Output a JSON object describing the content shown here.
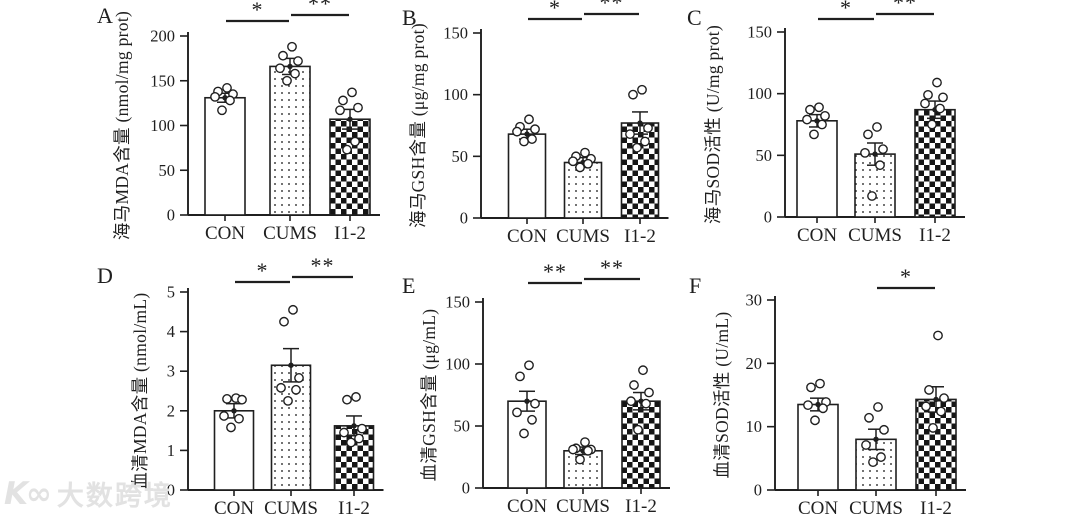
{
  "watermark": {
    "logo_text": "K∞",
    "brand_text": "大数跨境"
  },
  "colors": {
    "ink": "#1f1f1f",
    "background": "#ffffff",
    "watermark": "#e2e2e2"
  },
  "groups": [
    "CON",
    "CUMS",
    "I1-2"
  ],
  "chart_data": [
    {
      "panel": "A",
      "type": "bar",
      "ylabel": "海马MDA含量 (nmol/mg prot)",
      "categories": [
        "CON",
        "CUMS",
        "I1-2"
      ],
      "values": [
        131,
        166,
        107
      ],
      "errors": [
        5,
        9,
        11
      ],
      "points": [
        [
          142,
          138,
          135,
          132,
          128,
          117
        ],
        [
          188,
          178,
          172,
          164,
          158,
          150
        ],
        [
          137,
          128,
          120,
          117,
          82,
          73
        ]
      ],
      "ylim": [
        0,
        200
      ],
      "yticks": [
        0,
        50,
        100,
        150,
        200
      ],
      "bar_styles": [
        "plain",
        "dots",
        "checker"
      ],
      "grid": false,
      "legend": "none",
      "significance": [
        {
          "between": [
            "CON",
            "CUMS"
          ],
          "label": "*"
        },
        {
          "between": [
            "CUMS",
            "I1-2"
          ],
          "label": "**"
        }
      ]
    },
    {
      "panel": "B",
      "type": "bar",
      "ylabel": "海马GSH含量 (μg/mg prot)",
      "categories": [
        "CON",
        "CUMS",
        "I1-2"
      ],
      "values": [
        68,
        45,
        77
      ],
      "errors": [
        4,
        4,
        9
      ],
      "points": [
        [
          80,
          74,
          72,
          70,
          64,
          62
        ],
        [
          53,
          50,
          48,
          46,
          44,
          41
        ],
        [
          104,
          100,
          73,
          68,
          62,
          57
        ]
      ],
      "ylim": [
        0,
        150
      ],
      "yticks": [
        0,
        50,
        100,
        150
      ],
      "bar_styles": [
        "plain",
        "dots",
        "checker"
      ],
      "grid": false,
      "legend": "none",
      "significance": [
        {
          "between": [
            "CON",
            "CUMS"
          ],
          "label": "*"
        },
        {
          "between": [
            "CUMS",
            "I1-2"
          ],
          "label": "**"
        }
      ]
    },
    {
      "panel": "C",
      "type": "bar",
      "ylabel": "海马SOD活性 (U/mg prot)",
      "categories": [
        "CON",
        "CUMS",
        "I1-2"
      ],
      "values": [
        78,
        51,
        87
      ],
      "errors": [
        5,
        9,
        7
      ],
      "points": [
        [
          89,
          87,
          82,
          79,
          75,
          67
        ],
        [
          73,
          67,
          55,
          52,
          42,
          17
        ],
        [
          109,
          99,
          97,
          92,
          88,
          75
        ]
      ],
      "ylim": [
        0,
        150
      ],
      "yticks": [
        0,
        50,
        100,
        150
      ],
      "bar_styles": [
        "plain",
        "dots",
        "checker"
      ],
      "grid": false,
      "legend": "none",
      "significance": [
        {
          "between": [
            "CON",
            "CUMS"
          ],
          "label": "*"
        },
        {
          "between": [
            "CUMS",
            "I1-2"
          ],
          "label": "**"
        }
      ]
    },
    {
      "panel": "D",
      "type": "bar",
      "ylabel": "血清MDA含量 (nmol/mL)",
      "categories": [
        "CON",
        "CUMS",
        "I1-2"
      ],
      "values": [
        2.0,
        3.15,
        1.62
      ],
      "errors": [
        0.18,
        0.42,
        0.25
      ],
      "points": [
        [
          2.32,
          2.3,
          2.28,
          1.87,
          1.8,
          1.58
        ],
        [
          4.55,
          4.25,
          2.83,
          2.58,
          2.53,
          2.25
        ],
        [
          2.35,
          2.28,
          1.55,
          1.45,
          1.3,
          1.2
        ]
      ],
      "ylim": [
        0,
        5
      ],
      "yticks": [
        0,
        1,
        2,
        3,
        4,
        5
      ],
      "bar_styles": [
        "plain",
        "dots",
        "checker"
      ],
      "grid": false,
      "legend": "none",
      "significance": [
        {
          "between": [
            "CON",
            "CUMS"
          ],
          "label": "*"
        },
        {
          "between": [
            "CUMS",
            "I1-2"
          ],
          "label": "**"
        }
      ]
    },
    {
      "panel": "E",
      "type": "bar",
      "ylabel": "血清GSH含量 (μg/mL)",
      "categories": [
        "CON",
        "CUMS",
        "I1-2"
      ],
      "values": [
        70,
        30,
        70
      ],
      "errors": [
        8,
        3,
        7
      ],
      "points": [
        [
          99,
          90,
          68,
          61,
          55,
          44
        ],
        [
          37,
          32,
          31,
          31,
          30,
          23
        ],
        [
          95,
          83,
          77,
          70,
          68,
          47
        ]
      ],
      "ylim": [
        0,
        150
      ],
      "yticks": [
        0,
        50,
        100,
        150
      ],
      "bar_styles": [
        "plain",
        "dots",
        "checker"
      ],
      "grid": false,
      "legend": "none",
      "significance": [
        {
          "between": [
            "CON",
            "CUMS"
          ],
          "label": "**"
        },
        {
          "between": [
            "CUMS",
            "I1-2"
          ],
          "label": "**"
        }
      ]
    },
    {
      "panel": "F",
      "type": "bar",
      "ylabel": "血清SOD活性 (U/mL)",
      "categories": [
        "CON",
        "CUMS",
        "I1-2"
      ],
      "values": [
        13.5,
        8.0,
        14.3
      ],
      "errors": [
        1.0,
        1.6,
        2.0
      ],
      "points": [
        [
          16.8,
          16.2,
          13.9,
          13.4,
          12.9,
          11.0
        ],
        [
          13.1,
          11.4,
          9.5,
          7.1,
          5.2,
          4.4
        ],
        [
          24.4,
          15.8,
          14.5,
          13.2,
          12.4,
          9.8
        ]
      ],
      "ylim": [
        0,
        30
      ],
      "yticks": [
        0,
        10,
        20,
        30
      ],
      "bar_styles": [
        "plain",
        "dots",
        "checker"
      ],
      "grid": false,
      "legend": "none",
      "significance": [
        {
          "between": [
            "CUMS",
            "I1-2"
          ],
          "label": "*"
        }
      ]
    }
  ]
}
